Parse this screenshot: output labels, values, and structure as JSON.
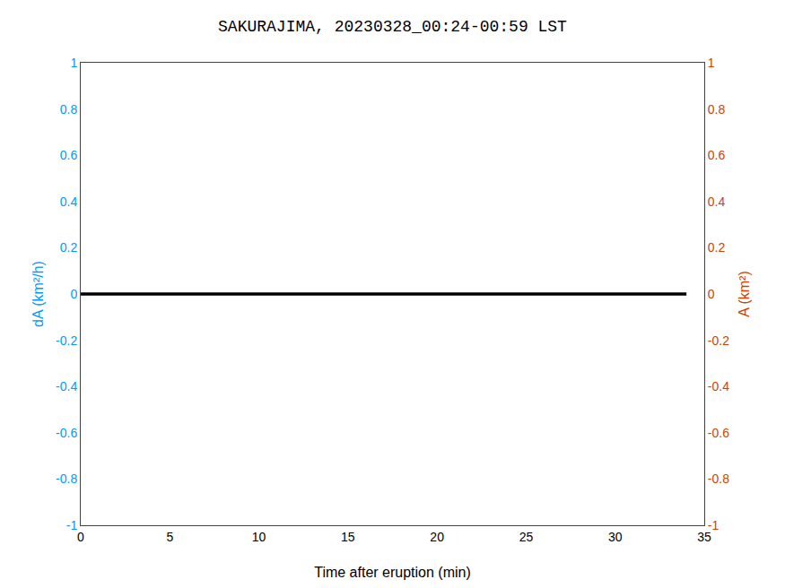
{
  "chart_data": {
    "type": "line",
    "title": "SAKURAJIMA, 20230328_00:24-00:59 LST",
    "xlabel": "Time after eruption (min)",
    "ylabel": "dA (km²/h)",
    "y2label": "A (km²)",
    "x": [
      0,
      34
    ],
    "series": [
      {
        "color": "#000000",
        "values": [
          0,
          0
        ]
      }
    ],
    "xlim": [
      0,
      35
    ],
    "xticks": [
      0,
      5,
      10,
      15,
      20,
      25,
      30,
      35
    ],
    "ylim": [
      -1,
      1
    ],
    "yticks": [
      -1,
      -0.8,
      -0.6,
      -0.4,
      -0.2,
      0,
      0.2,
      0.4,
      0.6,
      0.8,
      1
    ],
    "y2lim": [
      -1,
      1
    ],
    "y2ticks": [
      -1,
      -0.8,
      -0.6,
      -0.4,
      -0.2,
      0,
      0.2,
      0.4,
      0.6,
      0.8,
      1
    ],
    "grid": false
  }
}
